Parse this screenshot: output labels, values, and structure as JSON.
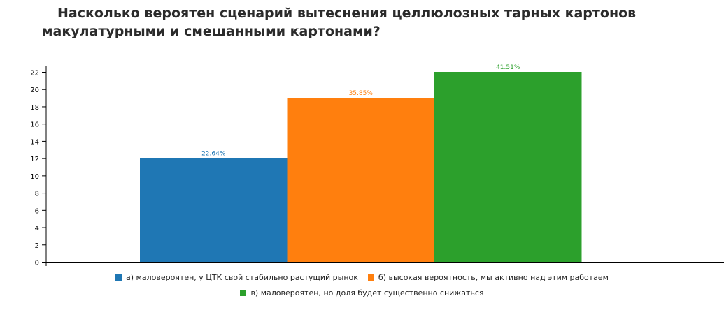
{
  "chart_data": {
    "type": "bar",
    "title": "Насколько вероятен сценарий вытеснения целлюлозных тарных картонов макулатурными и смешанными картонами?",
    "ylim": [
      0,
      22
    ],
    "yticks": [
      0,
      2,
      4,
      6,
      8,
      10,
      12,
      14,
      16,
      18,
      20,
      22
    ],
    "series": [
      {
        "name": "а) маловероятен, у ЦТК свой стабильно растущий рынок",
        "value": 12,
        "label": "22.64%",
        "color": "#1f77b4"
      },
      {
        "name": "б) высокая вероятность, мы активно над этим работаем",
        "value": 19,
        "label": "35.85%",
        "color": "#ff7f0e"
      },
      {
        "name": "в) маловероятен, но доля будет существенно снижаться",
        "value": 22,
        "label": "41.51%",
        "color": "#2ca02c"
      }
    ]
  }
}
